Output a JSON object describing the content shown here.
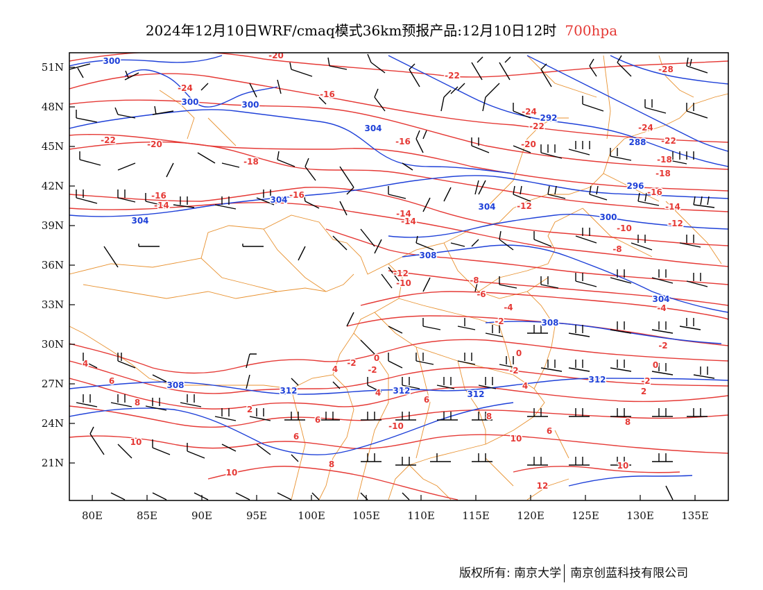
{
  "title": {
    "main": "2024年12月10日WRF/cmaq模式36km预报产品:12月10日12时",
    "level": "700hpa"
  },
  "colors": {
    "temperature": "#e53935",
    "geopotential": "#1e40d8",
    "coastline": "#e8912f",
    "wind_barb": "#000000"
  },
  "axes": {
    "lat_ticks": [
      "51N",
      "48N",
      "45N",
      "42N",
      "39N",
      "36N",
      "33N",
      "30N",
      "27N",
      "24N",
      "21N"
    ],
    "lon_ticks": [
      "80E",
      "85E",
      "90E",
      "95E",
      "100E",
      "105E",
      "110E",
      "115E",
      "120E",
      "125E",
      "130E",
      "135E"
    ]
  },
  "temperature_labels": [
    "-20",
    "-24",
    "-16",
    "-22",
    "-28",
    "-22",
    "-20",
    "-18",
    "-16",
    "-24",
    "-24",
    "-22",
    "-22",
    "-20",
    "-18",
    "-16",
    "-18",
    "-16",
    "-14",
    "-14",
    "-16",
    "-14",
    "-12",
    "-14",
    "-12",
    "-10",
    "-8",
    "-12",
    "-10",
    "-8",
    "-6",
    "-4",
    "-2",
    "-4",
    "-2",
    "0",
    "-2",
    "0",
    "-2",
    "-2",
    "0",
    "-2",
    "4",
    "6",
    "8",
    "2",
    "4",
    "6",
    "2",
    "6",
    "8",
    "10",
    "4",
    "6",
    "8",
    "6",
    "-10",
    "10",
    "10",
    "12",
    "8",
    "10",
    "4"
  ],
  "height_labels": [
    "300",
    "300",
    "300",
    "304",
    "292",
    "288",
    "296",
    "304",
    "304",
    "300",
    "304",
    "308",
    "304",
    "308",
    "308",
    "312",
    "312",
    "312",
    "312"
  ],
  "footer": {
    "copyright": "版权所有: 南京大学",
    "company": "南京创蓝科技有限公司"
  }
}
